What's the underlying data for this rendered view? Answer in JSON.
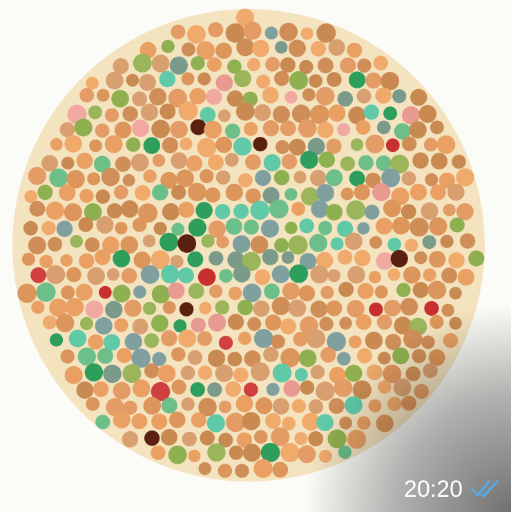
{
  "message": {
    "time": "20:20"
  }
}
